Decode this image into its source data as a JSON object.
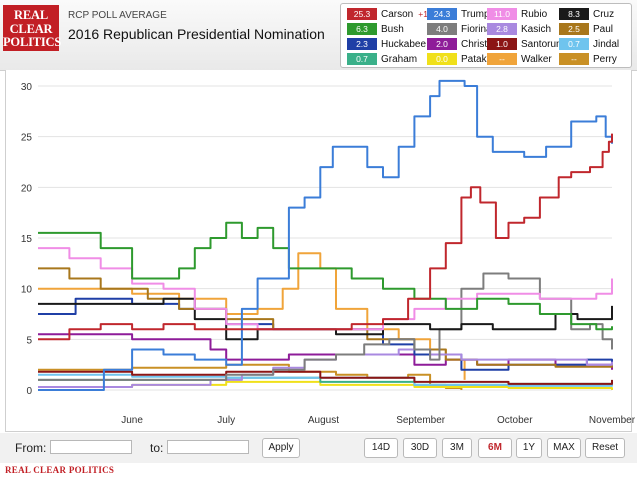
{
  "header": {
    "logo_text": "REAL CLEAR POLITICS",
    "subtitle": "RCP POLL AVERAGE",
    "title": "2016 Republican Presidential Nomination"
  },
  "legend": [
    {
      "value": "25.3",
      "name": "Carson",
      "change": "+1.0",
      "color": "#c0272d"
    },
    {
      "value": "24.3",
      "name": "Trump",
      "change": "",
      "color": "#3b7dd8"
    },
    {
      "value": "11.0",
      "name": "Rubio",
      "change": "",
      "color": "#f08de6"
    },
    {
      "value": "8.3",
      "name": "Cruz",
      "change": "",
      "color": "#1a1a1a"
    },
    {
      "value": "6.3",
      "name": "Bush",
      "change": "",
      "color": "#2e9a2e"
    },
    {
      "value": "4.0",
      "name": "Fiorina",
      "change": "",
      "color": "#7d7d7d"
    },
    {
      "value": "2.8",
      "name": "Kasich",
      "change": "",
      "color": "#a989e0"
    },
    {
      "value": "2.5",
      "name": "Paul",
      "change": "",
      "color": "#a8771c"
    },
    {
      "value": "2.3",
      "name": "Huckabee",
      "change": "",
      "color": "#1f3fa6"
    },
    {
      "value": "2.0",
      "name": "Christie",
      "change": "",
      "color": "#8e1c99"
    },
    {
      "value": "1.0",
      "name": "Santorum",
      "change": "",
      "color": "#8b1515"
    },
    {
      "value": "0.7",
      "name": "Jindal",
      "change": "",
      "color": "#6fc4ee"
    },
    {
      "value": "0.7",
      "name": "Graham",
      "change": "",
      "color": "#3ab089"
    },
    {
      "value": "0.0",
      "name": "Pataki",
      "change": "",
      "color": "#f0e01a"
    },
    {
      "value": "--",
      "name": "Walker",
      "change": "",
      "color": "#f0a43a"
    },
    {
      "value": "--",
      "name": "Perry",
      "change": "",
      "color": "#c99025"
    }
  ],
  "controls": {
    "from_label": "From:",
    "to_label": "to:",
    "apply_label": "Apply",
    "ranges": [
      "14D",
      "30D",
      "3M",
      "6M",
      "1Y",
      "MAX"
    ],
    "active_range": "6M",
    "reset_label": "Reset"
  },
  "footer": {
    "text": "REAL CLEAR POLITICS"
  },
  "chart_data": {
    "type": "line",
    "ylim": [
      0,
      30
    ],
    "yticks": [
      0,
      5,
      10,
      15,
      20,
      25,
      30
    ],
    "xlim": [
      0,
      183
    ],
    "x_ticks": [
      {
        "label": "June",
        "t": 30
      },
      {
        "label": "July",
        "t": 60
      },
      {
        "label": "August",
        "t": 91
      },
      {
        "label": "September",
        "t": 122
      },
      {
        "label": "October",
        "t": 152
      },
      {
        "label": "November",
        "t": 183
      }
    ],
    "grid": "horizontal",
    "series": [
      {
        "name": "Walker",
        "color": "#f0a43a",
        "points": [
          [
            0,
            10
          ],
          [
            15,
            10
          ],
          [
            30,
            9.5
          ],
          [
            45,
            9
          ],
          [
            60,
            7.5
          ],
          [
            70,
            8
          ],
          [
            78,
            10
          ],
          [
            83,
            13.5
          ],
          [
            90,
            12
          ],
          [
            95,
            8
          ],
          [
            105,
            6
          ],
          [
            115,
            5
          ],
          [
            125,
            4
          ],
          [
            130,
            3
          ],
          [
            136,
            1
          ]
        ]
      },
      {
        "name": "Perry",
        "color": "#c99025",
        "points": [
          [
            0,
            2
          ],
          [
            30,
            2.2
          ],
          [
            60,
            2.5
          ],
          [
            80,
            1.8
          ],
          [
            95,
            1.5
          ],
          [
            105,
            1.2
          ],
          [
            118,
            1.5
          ],
          [
            125,
            0.5
          ],
          [
            130,
            0.2
          ],
          [
            135,
            0
          ]
        ]
      },
      {
        "name": "Pataki",
        "color": "#f0e01a",
        "points": [
          [
            0,
            0.3
          ],
          [
            30,
            0.5
          ],
          [
            60,
            0.8
          ],
          [
            90,
            0.5
          ],
          [
            120,
            0.3
          ],
          [
            150,
            0.2
          ],
          [
            183,
            0
          ]
        ]
      },
      {
        "name": "Graham",
        "color": "#3ab089",
        "points": [
          [
            0,
            1
          ],
          [
            30,
            1
          ],
          [
            60,
            1.2
          ],
          [
            90,
            0.8
          ],
          [
            120,
            0.5
          ],
          [
            150,
            0.6
          ],
          [
            183,
            0.7
          ]
        ]
      },
      {
        "name": "Jindal",
        "color": "#6fc4ee",
        "points": [
          [
            0,
            1.5
          ],
          [
            30,
            1.3
          ],
          [
            60,
            1.2
          ],
          [
            90,
            1.2
          ],
          [
            120,
            0.5
          ],
          [
            150,
            0.4
          ],
          [
            183,
            0.7
          ]
        ]
      },
      {
        "name": "Santorum",
        "color": "#8b1515",
        "points": [
          [
            0,
            1.8
          ],
          [
            30,
            1.5
          ],
          [
            60,
            1.8
          ],
          [
            90,
            1.2
          ],
          [
            120,
            0.8
          ],
          [
            150,
            0.6
          ],
          [
            183,
            1
          ]
        ]
      },
      {
        "name": "Christie",
        "color": "#8e1c99",
        "points": [
          [
            0,
            5.5
          ],
          [
            10,
            5.5
          ],
          [
            30,
            5
          ],
          [
            55,
            4
          ],
          [
            60,
            3
          ],
          [
            80,
            3.5
          ],
          [
            91,
            3.5
          ],
          [
            120,
            2.5
          ],
          [
            130,
            3
          ],
          [
            140,
            2.5
          ],
          [
            150,
            3
          ],
          [
            165,
            2.5
          ],
          [
            183,
            2
          ]
        ]
      },
      {
        "name": "Huckabee",
        "color": "#1f3fa6",
        "points": [
          [
            0,
            7.5
          ],
          [
            12,
            9
          ],
          [
            30,
            8.5
          ],
          [
            45,
            8
          ],
          [
            60,
            6.5
          ],
          [
            75,
            6
          ],
          [
            90,
            6
          ],
          [
            110,
            4.5
          ],
          [
            120,
            3.5
          ],
          [
            135,
            2
          ],
          [
            150,
            2.5
          ],
          [
            165,
            2.5
          ],
          [
            175,
            3
          ],
          [
            183,
            2.3
          ]
        ]
      },
      {
        "name": "Paul",
        "color": "#a8771c",
        "points": [
          [
            0,
            12
          ],
          [
            10,
            11
          ],
          [
            20,
            10
          ],
          [
            35,
            9
          ],
          [
            45,
            8
          ],
          [
            60,
            7
          ],
          [
            75,
            6
          ],
          [
            91,
            6
          ],
          [
            105,
            5
          ],
          [
            120,
            4
          ],
          [
            130,
            3
          ],
          [
            140,
            2.5
          ],
          [
            150,
            2.5
          ],
          [
            165,
            2.3
          ],
          [
            183,
            2.5
          ]
        ]
      },
      {
        "name": "Kasich",
        "color": "#a989e0",
        "points": [
          [
            0,
            0.3
          ],
          [
            30,
            0.5
          ],
          [
            55,
            1
          ],
          [
            65,
            1.5
          ],
          [
            75,
            2.2
          ],
          [
            85,
            3
          ],
          [
            95,
            3.5
          ],
          [
            105,
            3.5
          ],
          [
            115,
            4
          ],
          [
            125,
            3.5
          ],
          [
            135,
            3
          ],
          [
            145,
            3
          ],
          [
            155,
            3
          ],
          [
            165,
            3
          ],
          [
            175,
            2.5
          ],
          [
            183,
            2.8
          ]
        ]
      },
      {
        "name": "Fiorina",
        "color": "#7d7d7d",
        "points": [
          [
            0,
            1
          ],
          [
            30,
            1
          ],
          [
            60,
            1.5
          ],
          [
            75,
            2
          ],
          [
            85,
            3
          ],
          [
            95,
            3.5
          ],
          [
            104,
            4.5
          ],
          [
            112,
            5
          ],
          [
            120,
            4
          ],
          [
            125,
            3
          ],
          [
            128,
            6
          ],
          [
            135,
            10
          ],
          [
            142,
            11.5
          ],
          [
            150,
            11
          ],
          [
            160,
            9
          ],
          [
            170,
            6
          ],
          [
            176,
            6.5
          ],
          [
            180,
            5
          ],
          [
            183,
            4
          ]
        ]
      },
      {
        "name": "Cruz",
        "color": "#1a1a1a",
        "points": [
          [
            0,
            8.5
          ],
          [
            15,
            8.5
          ],
          [
            30,
            8.5
          ],
          [
            40,
            9
          ],
          [
            50,
            7
          ],
          [
            60,
            5
          ],
          [
            70,
            6
          ],
          [
            85,
            6
          ],
          [
            95,
            5.5
          ],
          [
            110,
            6.5
          ],
          [
            125,
            6
          ],
          [
            135,
            6.5
          ],
          [
            145,
            6
          ],
          [
            155,
            6
          ],
          [
            165,
            7.5
          ],
          [
            172,
            7
          ],
          [
            178,
            7
          ],
          [
            183,
            8.3
          ]
        ]
      },
      {
        "name": "Rubio",
        "color": "#f08de6",
        "points": [
          [
            0,
            14
          ],
          [
            10,
            13
          ],
          [
            20,
            12
          ],
          [
            30,
            10.5
          ],
          [
            40,
            10
          ],
          [
            50,
            8
          ],
          [
            60,
            6.5
          ],
          [
            70,
            6
          ],
          [
            80,
            6
          ],
          [
            90,
            6
          ],
          [
            100,
            6
          ],
          [
            110,
            7
          ],
          [
            120,
            8
          ],
          [
            130,
            9
          ],
          [
            140,
            9.5
          ],
          [
            150,
            9.5
          ],
          [
            160,
            9
          ],
          [
            170,
            9
          ],
          [
            178,
            9.5
          ],
          [
            181,
            9.5
          ],
          [
            183,
            11
          ]
        ]
      },
      {
        "name": "Bush",
        "color": "#2e9a2e",
        "points": [
          [
            0,
            15.5
          ],
          [
            10,
            15.5
          ],
          [
            20,
            14
          ],
          [
            30,
            11
          ],
          [
            40,
            11
          ],
          [
            45,
            12
          ],
          [
            50,
            14
          ],
          [
            55,
            15
          ],
          [
            60,
            16.5
          ],
          [
            65,
            15
          ],
          [
            70,
            16
          ],
          [
            75,
            14
          ],
          [
            80,
            12
          ],
          [
            91,
            12
          ],
          [
            100,
            11
          ],
          [
            110,
            10
          ],
          [
            120,
            9
          ],
          [
            130,
            8
          ],
          [
            140,
            9
          ],
          [
            150,
            8.5
          ],
          [
            160,
            7.5
          ],
          [
            170,
            6.5
          ],
          [
            178,
            6
          ],
          [
            183,
            6.3
          ]
        ]
      },
      {
        "name": "Trump",
        "color": "#3b7dd8",
        "points": [
          [
            0,
            0
          ],
          [
            15,
            0
          ],
          [
            21,
            2
          ],
          [
            30,
            4
          ],
          [
            40,
            3.5
          ],
          [
            50,
            3
          ],
          [
            60,
            2.5
          ],
          [
            65,
            8
          ],
          [
            70,
            11
          ],
          [
            80,
            18
          ],
          [
            85,
            19
          ],
          [
            90,
            22
          ],
          [
            94,
            24
          ],
          [
            100,
            24
          ],
          [
            105,
            22
          ],
          [
            110,
            21
          ],
          [
            115,
            24
          ],
          [
            120,
            27
          ],
          [
            125,
            29
          ],
          [
            128,
            30.5
          ],
          [
            132,
            30.5
          ],
          [
            136,
            30
          ],
          [
            140,
            25
          ],
          [
            145,
            23.5
          ],
          [
            150,
            23.5
          ],
          [
            155,
            23
          ],
          [
            162,
            24
          ],
          [
            170,
            26.5
          ],
          [
            178,
            27
          ],
          [
            181,
            25
          ],
          [
            183,
            24.3
          ]
        ]
      },
      {
        "name": "Carson",
        "color": "#c0272d",
        "points": [
          [
            0,
            5
          ],
          [
            10,
            6
          ],
          [
            20,
            6.5
          ],
          [
            30,
            6
          ],
          [
            40,
            6.5
          ],
          [
            50,
            6
          ],
          [
            60,
            6
          ],
          [
            70,
            6
          ],
          [
            80,
            6
          ],
          [
            91,
            6
          ],
          [
            100,
            6.5
          ],
          [
            110,
            7
          ],
          [
            118,
            9
          ],
          [
            125,
            12
          ],
          [
            130,
            14.5
          ],
          [
            135,
            19
          ],
          [
            138,
            20
          ],
          [
            141,
            18.5
          ],
          [
            146,
            15
          ],
          [
            150,
            16.5
          ],
          [
            155,
            17
          ],
          [
            160,
            19
          ],
          [
            166,
            21
          ],
          [
            170,
            21.5
          ],
          [
            176,
            22
          ],
          [
            180,
            23.5
          ],
          [
            182,
            24.5
          ],
          [
            183,
            25.3
          ]
        ]
      }
    ]
  }
}
